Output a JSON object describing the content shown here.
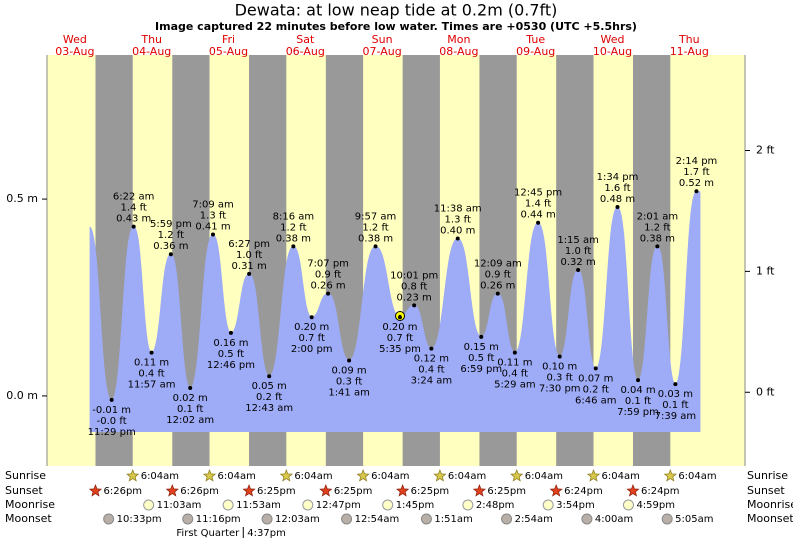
{
  "chart_data": {
    "type": "tide",
    "title": "Dewata: at low  neap tide at 0.2m (0.7ft)",
    "subtitle": "Image captured 22 minutes before low water. Times are +0530 (UTC +5.5hrs)",
    "color": "#9eabf7",
    "day_color": "#ffffc0",
    "night_color": "#999999",
    "ylim": [
      -0.178,
      0.866
    ],
    "yticks": [
      {
        "value": 0,
        "label": "0.0 m"
      },
      {
        "value": 0.5,
        "label": "0.5 m"
      }
    ],
    "y2lim": [
      -0.61,
      2.79
    ],
    "y2ticks": [
      {
        "value": 0,
        "label": "0 ft"
      },
      {
        "value": 1,
        "label": "1 ft"
      },
      {
        "value": 2,
        "label": "2 ft"
      }
    ],
    "rows": {
      "sunrise": "Sunrise",
      "sunset": "Sunset",
      "moonrise": "Moonrise",
      "moonset": "Moonset"
    },
    "days": [
      {
        "weekday": "Wed",
        "date": "03-Aug",
        "sunset": "6:26pm",
        "moonset": "10:33pm",
        "tides": [
          {
            "time": "11:29 pm",
            "value": -0.01,
            "value_label": "-0.01 m",
            "ft": "-0.0 ft"
          }
        ]
      },
      {
        "weekday": "Thu",
        "date": "04-Aug",
        "sunrise": "6:04am",
        "sunset": "6:26pm",
        "moonrise": "11:03am",
        "moonset": "11:16pm",
        "tides": [
          {
            "time": "6:22 am",
            "value": 0.43,
            "value_label": "0.43 m",
            "ft": "1.4 ft"
          },
          {
            "time": "11:57 am",
            "value": 0.11,
            "value_label": "0.11 m",
            "ft": "0.4 ft"
          },
          {
            "time": "5:59 pm",
            "value": 0.36,
            "value_label": "0.36 m",
            "ft": "1.2 ft"
          }
        ]
      },
      {
        "weekday": "Fri",
        "date": "05-Aug",
        "sunrise": "6:04am",
        "sunset": "6:25pm",
        "moonrise": "11:53am",
        "moon_phase": {
          "name": "First Quarter",
          "time": "4:37pm"
        },
        "tides": [
          {
            "time": "12:02 am",
            "value": 0.02,
            "value_label": "0.02 m",
            "ft": "0.1 ft"
          },
          {
            "time": "7:09 am",
            "value": 0.41,
            "value_label": "0.41 m",
            "ft": "1.3 ft"
          },
          {
            "time": "12:46 pm",
            "value": 0.16,
            "value_label": "0.16 m",
            "ft": "0.5 ft"
          },
          {
            "time": "6:27 pm",
            "value": 0.31,
            "value_label": "0.31 m",
            "ft": "1.0 ft"
          }
        ]
      },
      {
        "weekday": "Sat",
        "date": "06-Aug",
        "sunrise": "6:04am",
        "sunset": "6:25pm",
        "moonrise": "12:47pm",
        "moonset": "12:03am",
        "tides": [
          {
            "time": "12:43 am",
            "value": 0.05,
            "value_label": "0.05 m",
            "ft": "0.2 ft"
          },
          {
            "time": "8:16 am",
            "value": 0.38,
            "value_label": "0.38 m",
            "ft": "1.2 ft"
          },
          {
            "time": "2:00 pm",
            "value": 0.2,
            "value_label": "0.20 m",
            "ft": "0.7 ft"
          },
          {
            "time": "7:07 pm",
            "value": 0.26,
            "value_label": "0.26 m",
            "ft": "0.9 ft"
          }
        ]
      },
      {
        "weekday": "Sun",
        "date": "07-Aug",
        "sunrise": "6:04am",
        "sunset": "6:25pm",
        "moonrise": "1:45pm",
        "moonset": "12:54am",
        "tides": [
          {
            "time": "1:41 am",
            "value": 0.09,
            "value_label": "0.09 m",
            "ft": "0.3 ft"
          },
          {
            "time": "9:57 am",
            "value": 0.38,
            "value_label": "0.38 m",
            "ft": "1.2 ft"
          },
          {
            "time": "5:35 pm",
            "value": 0.2,
            "value_label": "0.20 m",
            "ft": "0.7 ft"
          },
          {
            "time": "10:01 pm",
            "value": 0.23,
            "value_label": "0.23 m",
            "ft": "0.8 ft"
          }
        ]
      },
      {
        "weekday": "Mon",
        "date": "08-Aug",
        "sunrise": "6:04am",
        "sunset": "6:25pm",
        "moonrise": "2:48pm",
        "moonset": "1:51am",
        "tides": [
          {
            "time": "3:24 am",
            "value": 0.12,
            "value_label": "0.12 m",
            "ft": "0.4 ft"
          },
          {
            "time": "11:38 am",
            "value": 0.4,
            "value_label": "0.40 m",
            "ft": "1.3 ft"
          },
          {
            "time": "6:59 pm",
            "value": 0.15,
            "value_label": "0.15 m",
            "ft": "0.5 ft"
          }
        ]
      },
      {
        "weekday": "Tue",
        "date": "09-Aug",
        "sunrise": "6:04am",
        "sunset": "6:24pm",
        "moonrise": "3:54pm",
        "moonset": "2:54am",
        "tides": [
          {
            "time": "12:09 am",
            "value": 0.26,
            "value_label": "0.26 m",
            "ft": "0.9 ft"
          },
          {
            "time": "5:29 am",
            "value": 0.11,
            "value_label": "0.11 m",
            "ft": "0.4 ft"
          },
          {
            "time": "12:45 pm",
            "value": 0.44,
            "value_label": "0.44 m",
            "ft": "1.4 ft"
          },
          {
            "time": "7:30 pm",
            "value": 0.1,
            "value_label": "0.10 m",
            "ft": "0.3 ft"
          }
        ]
      },
      {
        "weekday": "Wed",
        "date": "10-Aug",
        "sunrise": "6:04am",
        "sunset": "6:24pm",
        "moonrise": "4:59pm",
        "moonset": "4:00am",
        "tides": [
          {
            "time": "1:15 am",
            "value": 0.32,
            "value_label": "0.32 m",
            "ft": "1.0 ft"
          },
          {
            "time": "6:46 am",
            "value": 0.07,
            "value_label": "0.07 m",
            "ft": "0.2 ft"
          },
          {
            "time": "1:34 pm",
            "value": 0.48,
            "value_label": "0.48 m",
            "ft": "1.6 ft"
          },
          {
            "time": "7:59 pm",
            "value": 0.04,
            "value_label": "0.04 m",
            "ft": "0.1 ft"
          }
        ]
      },
      {
        "weekday": "Thu",
        "date": "11-Aug",
        "sunrise": "6:04am",
        "moonset": "5:05am",
        "tides": [
          {
            "time": "2:01 am",
            "value": 0.38,
            "value_label": "0.38 m",
            "ft": "1.2 ft"
          },
          {
            "time": "7:39 am",
            "value": 0.03,
            "value_label": "0.03 m",
            "ft": "0.1 ft"
          },
          {
            "time": "2:14 pm",
            "value": 0.52,
            "value_label": "0.52 m",
            "ft": "1.7 ft"
          }
        ]
      }
    ]
  }
}
